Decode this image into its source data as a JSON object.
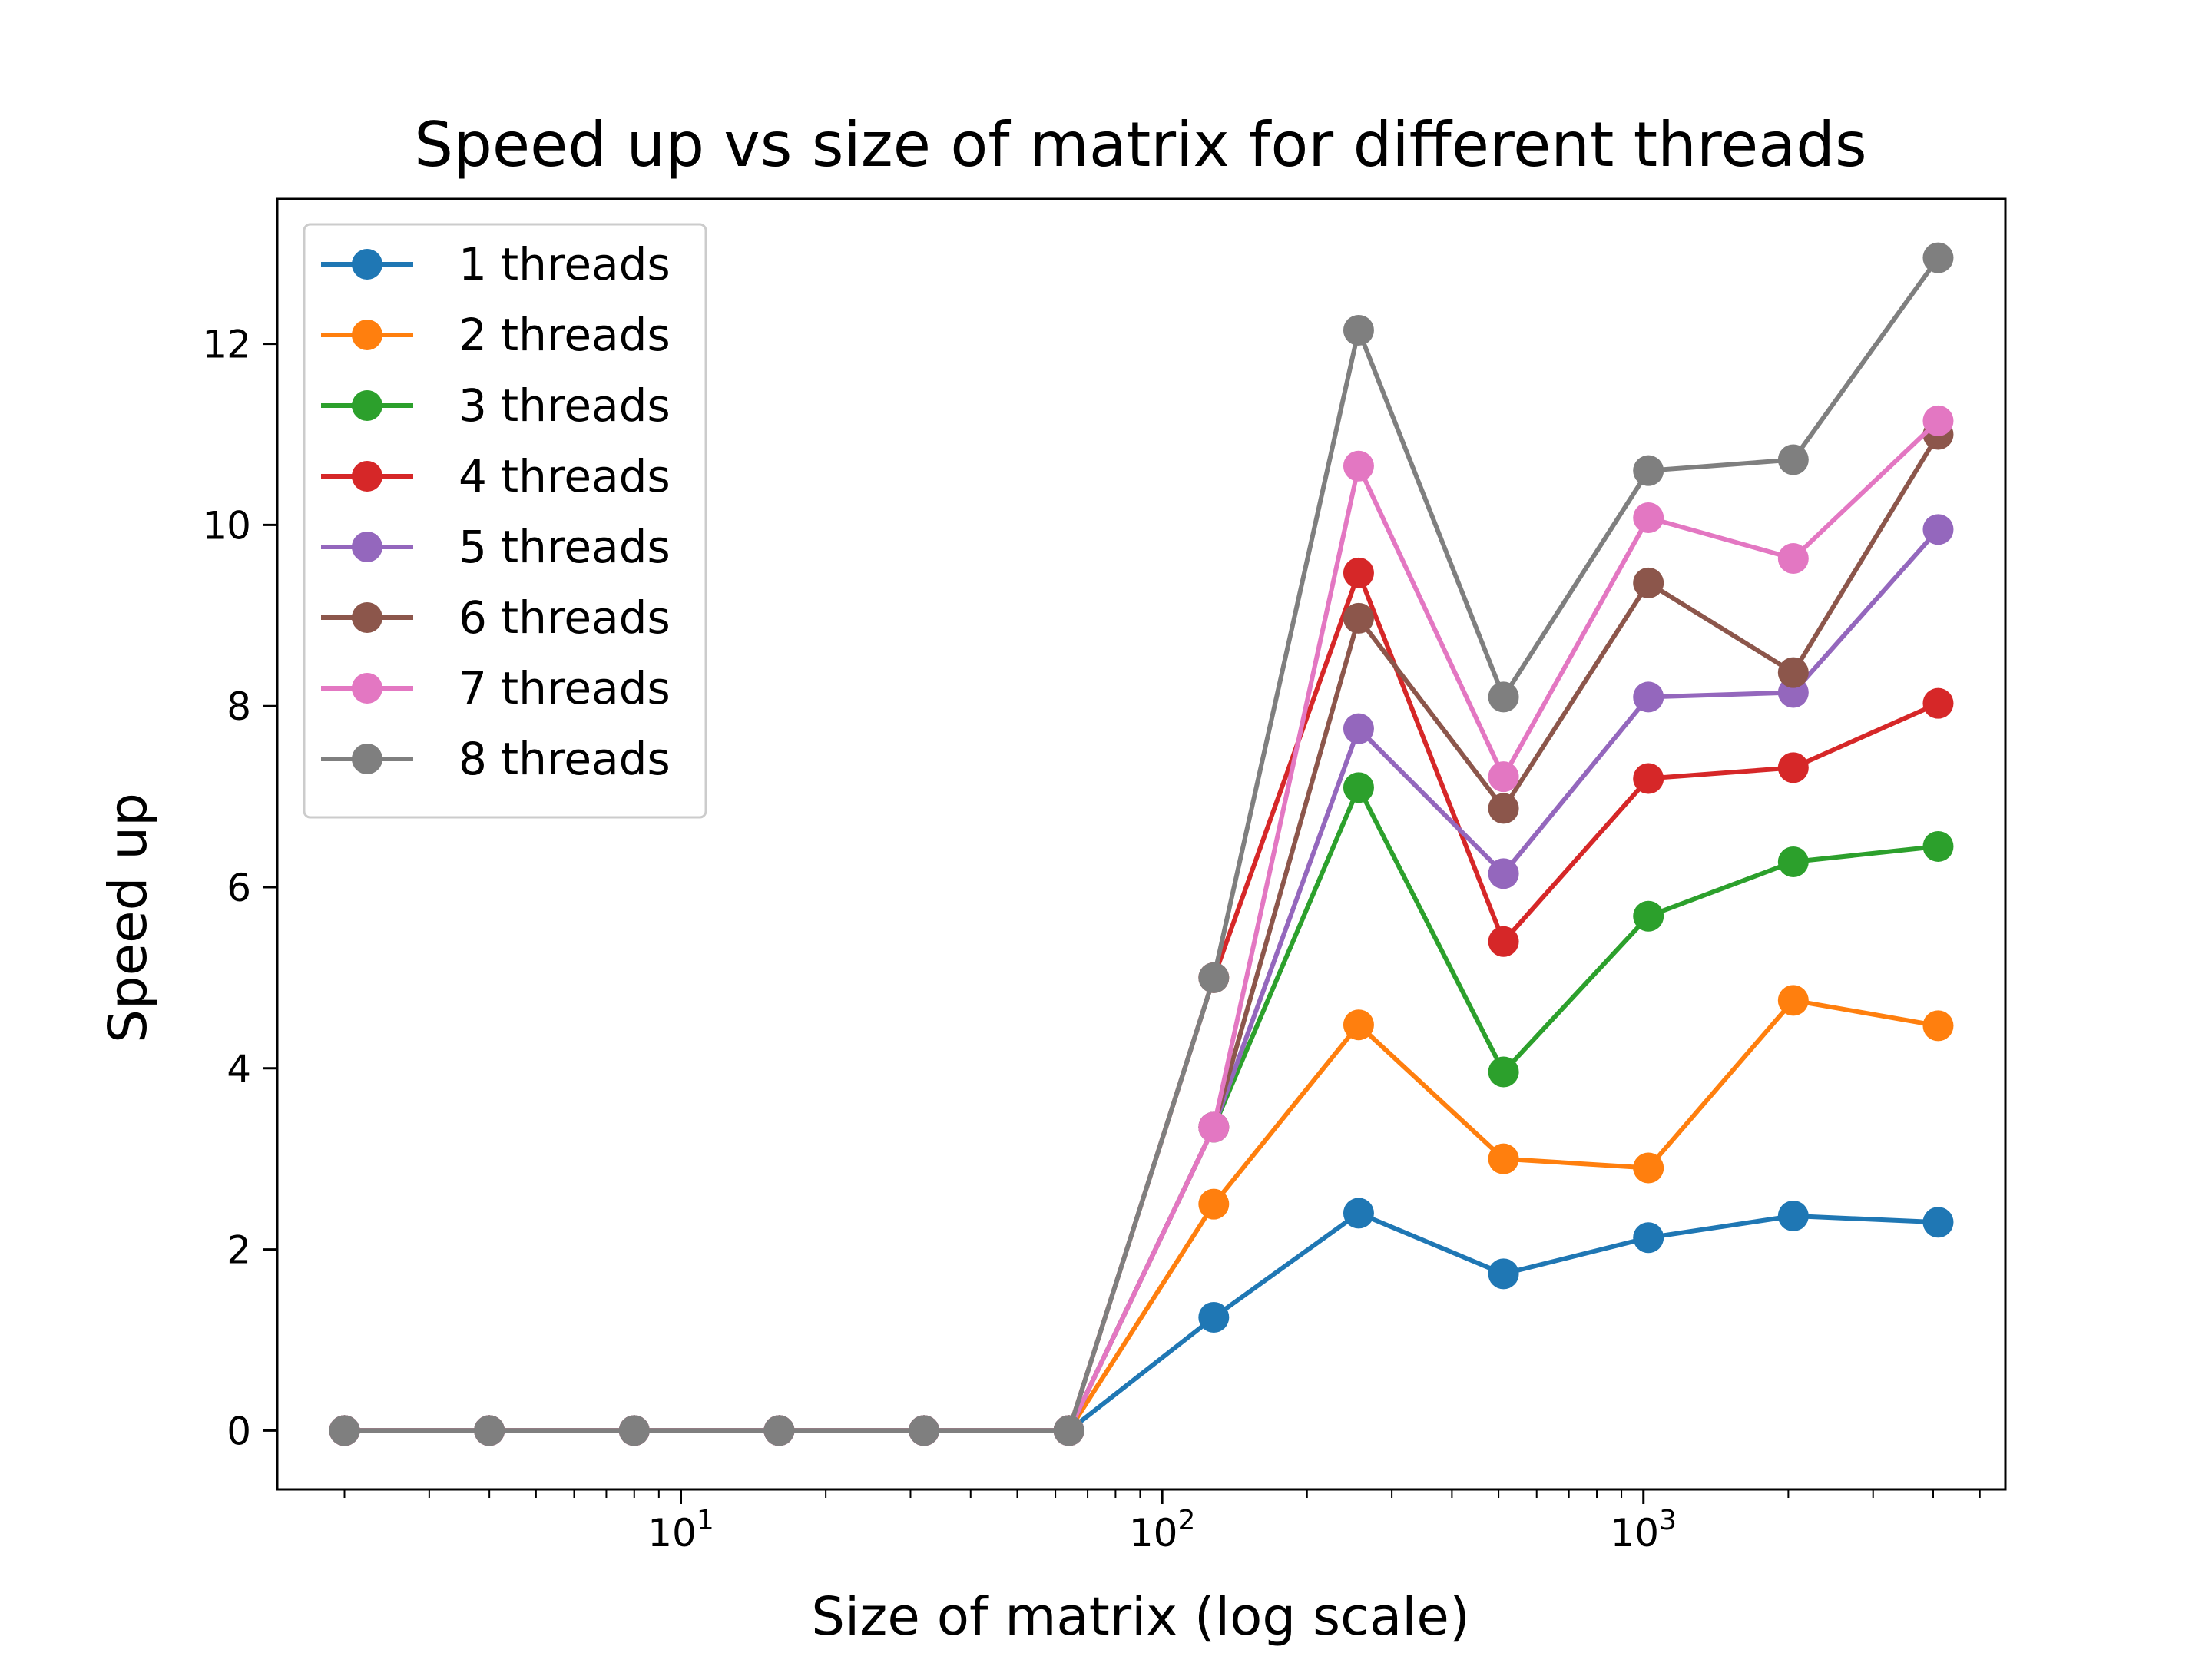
{
  "chart_data": {
    "type": "line",
    "title": "Speed up vs size of matrix for different threads",
    "xlabel": "Size of matrix (log scale)",
    "ylabel": "Speed up",
    "x_scale": "log",
    "xlim": [
      1.45,
      5650
    ],
    "ylim": [
      -0.65,
      13.6
    ],
    "x_ticks": [
      {
        "value": 10,
        "base": "10",
        "exp": "1"
      },
      {
        "value": 100,
        "base": "10",
        "exp": "2"
      },
      {
        "value": 1000,
        "base": "10",
        "exp": "3"
      }
    ],
    "y_ticks": [
      "0",
      "2",
      "4",
      "6",
      "8",
      "10",
      "12"
    ],
    "grid": false,
    "legend_position": "top-left",
    "x": [
      2,
      4,
      8,
      16,
      32,
      64,
      128,
      256,
      512,
      1024,
      2048,
      4096
    ],
    "series": [
      {
        "name": "1 threads",
        "color": "#1f77b4",
        "values": [
          0,
          0,
          0,
          0,
          0,
          0,
          1.25,
          2.4,
          1.73,
          2.13,
          2.37,
          2.3
        ]
      },
      {
        "name": "2 threads",
        "color": "#ff7f0e",
        "values": [
          0,
          0,
          0,
          0,
          0,
          0,
          2.5,
          4.48,
          3.0,
          2.9,
          4.75,
          4.47
        ]
      },
      {
        "name": "3 threads",
        "color": "#2ca02c",
        "values": [
          0,
          0,
          0,
          0,
          0,
          0,
          3.35,
          7.1,
          3.96,
          5.68,
          6.28,
          6.45
        ]
      },
      {
        "name": "4 threads",
        "color": "#d62728",
        "values": [
          0,
          0,
          0,
          0,
          0,
          0,
          5.0,
          9.47,
          5.4,
          7.2,
          7.32,
          8.03
        ]
      },
      {
        "name": "5 threads",
        "color": "#9467bd",
        "values": [
          0,
          0,
          0,
          0,
          0,
          0,
          3.35,
          7.75,
          6.15,
          8.1,
          8.15,
          9.95
        ]
      },
      {
        "name": "6 threads",
        "color": "#8c564b",
        "values": [
          0,
          0,
          0,
          0,
          0,
          0,
          3.35,
          8.97,
          6.87,
          9.36,
          8.37,
          11.0
        ]
      },
      {
        "name": "7 threads",
        "color": "#e377c2",
        "values": [
          0,
          0,
          0,
          0,
          0,
          0,
          3.35,
          10.65,
          7.22,
          10.08,
          9.63,
          11.15
        ]
      },
      {
        "name": "8 threads",
        "color": "#7f7f7f",
        "values": [
          0,
          0,
          0,
          0,
          0,
          0,
          5.0,
          12.15,
          8.1,
          10.6,
          10.72,
          12.95
        ]
      }
    ]
  }
}
